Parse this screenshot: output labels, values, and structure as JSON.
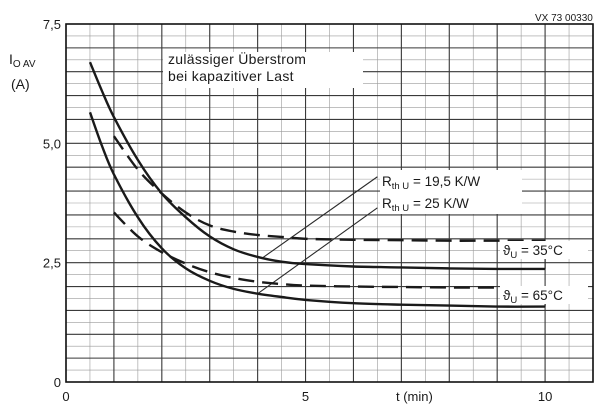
{
  "chart_data": {
    "type": "line",
    "ref_code": "VX 73 00330",
    "ylabel_main": "I",
    "ylabel_sub": "O AV",
    "ylabel_unit": "(A)",
    "xlabel": "t (min)",
    "xlim": [
      0,
      11
    ],
    "ylim": [
      0,
      7.5
    ],
    "x_ticks": [
      {
        "value": 0,
        "label": "0"
      },
      {
        "value": 5,
        "label": "5"
      },
      {
        "value": 10,
        "label": "10"
      }
    ],
    "y_ticks": [
      {
        "value": 0,
        "label": "0"
      },
      {
        "value": 2.5,
        "label": "2,5"
      },
      {
        "value": 5.0,
        "label": "5,0"
      },
      {
        "value": 7.5,
        "label": "7,5"
      }
    ],
    "grid": true,
    "grid_major_step_x": 1,
    "grid_major_step_y": 0.5,
    "grid_minor_step_x": 0.5,
    "grid_minor_step_y": 0.25,
    "annotation_line1": "zulässiger Überstrom",
    "annotation_line2": "bei kapazitiver Last",
    "rth_labels": [
      {
        "main": "R",
        "sub": "th U",
        "value": " = 19,5 K/W"
      },
      {
        "main": "R",
        "sub": "th U",
        "value": " = 25 K/W"
      }
    ],
    "temp_labels": [
      {
        "main": "ϑ",
        "sub": "U",
        "value": " = 35°C"
      },
      {
        "main": "ϑ",
        "sub": "U",
        "value": " = 65°C"
      }
    ],
    "series": [
      {
        "style": "solid",
        "color": "#1a1a1a",
        "x": [
          0.5,
          0.75,
          1.0,
          1.5,
          2.0,
          2.5,
          3.0,
          3.5,
          4.0,
          4.5,
          5.0,
          6.0,
          7.0,
          8.0,
          9.0,
          10.0
        ],
        "y": [
          6.7,
          6.1,
          5.55,
          4.65,
          3.95,
          3.45,
          3.05,
          2.78,
          2.62,
          2.52,
          2.47,
          2.42,
          2.4,
          2.38,
          2.37,
          2.37
        ]
      },
      {
        "style": "solid",
        "color": "#1a1a1a",
        "x": [
          0.5,
          0.75,
          1.0,
          1.5,
          2.0,
          2.5,
          3.0,
          3.5,
          4.0,
          4.5,
          5.0,
          6.0,
          7.0,
          8.0,
          9.0,
          10.0
        ],
        "y": [
          5.65,
          4.95,
          4.35,
          3.45,
          2.8,
          2.38,
          2.12,
          1.95,
          1.85,
          1.78,
          1.72,
          1.65,
          1.62,
          1.6,
          1.58,
          1.58
        ]
      },
      {
        "style": "dashed",
        "color": "#1a1a1a",
        "x": [
          1.0,
          1.5,
          2.0,
          2.5,
          3.0,
          3.5,
          4.0,
          4.5,
          5.0,
          6.0,
          7.0,
          8.0,
          9.0,
          10.0
        ],
        "y": [
          5.15,
          4.45,
          3.95,
          3.55,
          3.28,
          3.15,
          3.08,
          3.04,
          3.0,
          2.98,
          2.97,
          2.96,
          2.96,
          2.96
        ]
      },
      {
        "style": "dashed",
        "color": "#1a1a1a",
        "x": [
          1.0,
          1.5,
          2.0,
          2.5,
          3.0,
          3.5,
          4.0,
          4.5,
          5.0,
          6.0,
          7.0,
          8.0,
          9.0,
          10.0
        ],
        "y": [
          3.55,
          3.05,
          2.72,
          2.48,
          2.3,
          2.18,
          2.1,
          2.05,
          2.02,
          2.0,
          1.99,
          1.98,
          1.98,
          1.98
        ]
      }
    ],
    "leader_lines": [
      {
        "from": [
          4.1,
          2.6
        ],
        "to": [
          6.5,
          4.3
        ]
      },
      {
        "from": [
          4.0,
          1.85
        ],
        "to": [
          6.5,
          3.65
        ]
      },
      {
        "from": [
          10.0,
          2.96
        ],
        "to": [
          10.0,
          2.37
        ]
      },
      {
        "from": [
          10.0,
          1.98
        ],
        "to": [
          10.0,
          1.58
        ]
      }
    ]
  }
}
